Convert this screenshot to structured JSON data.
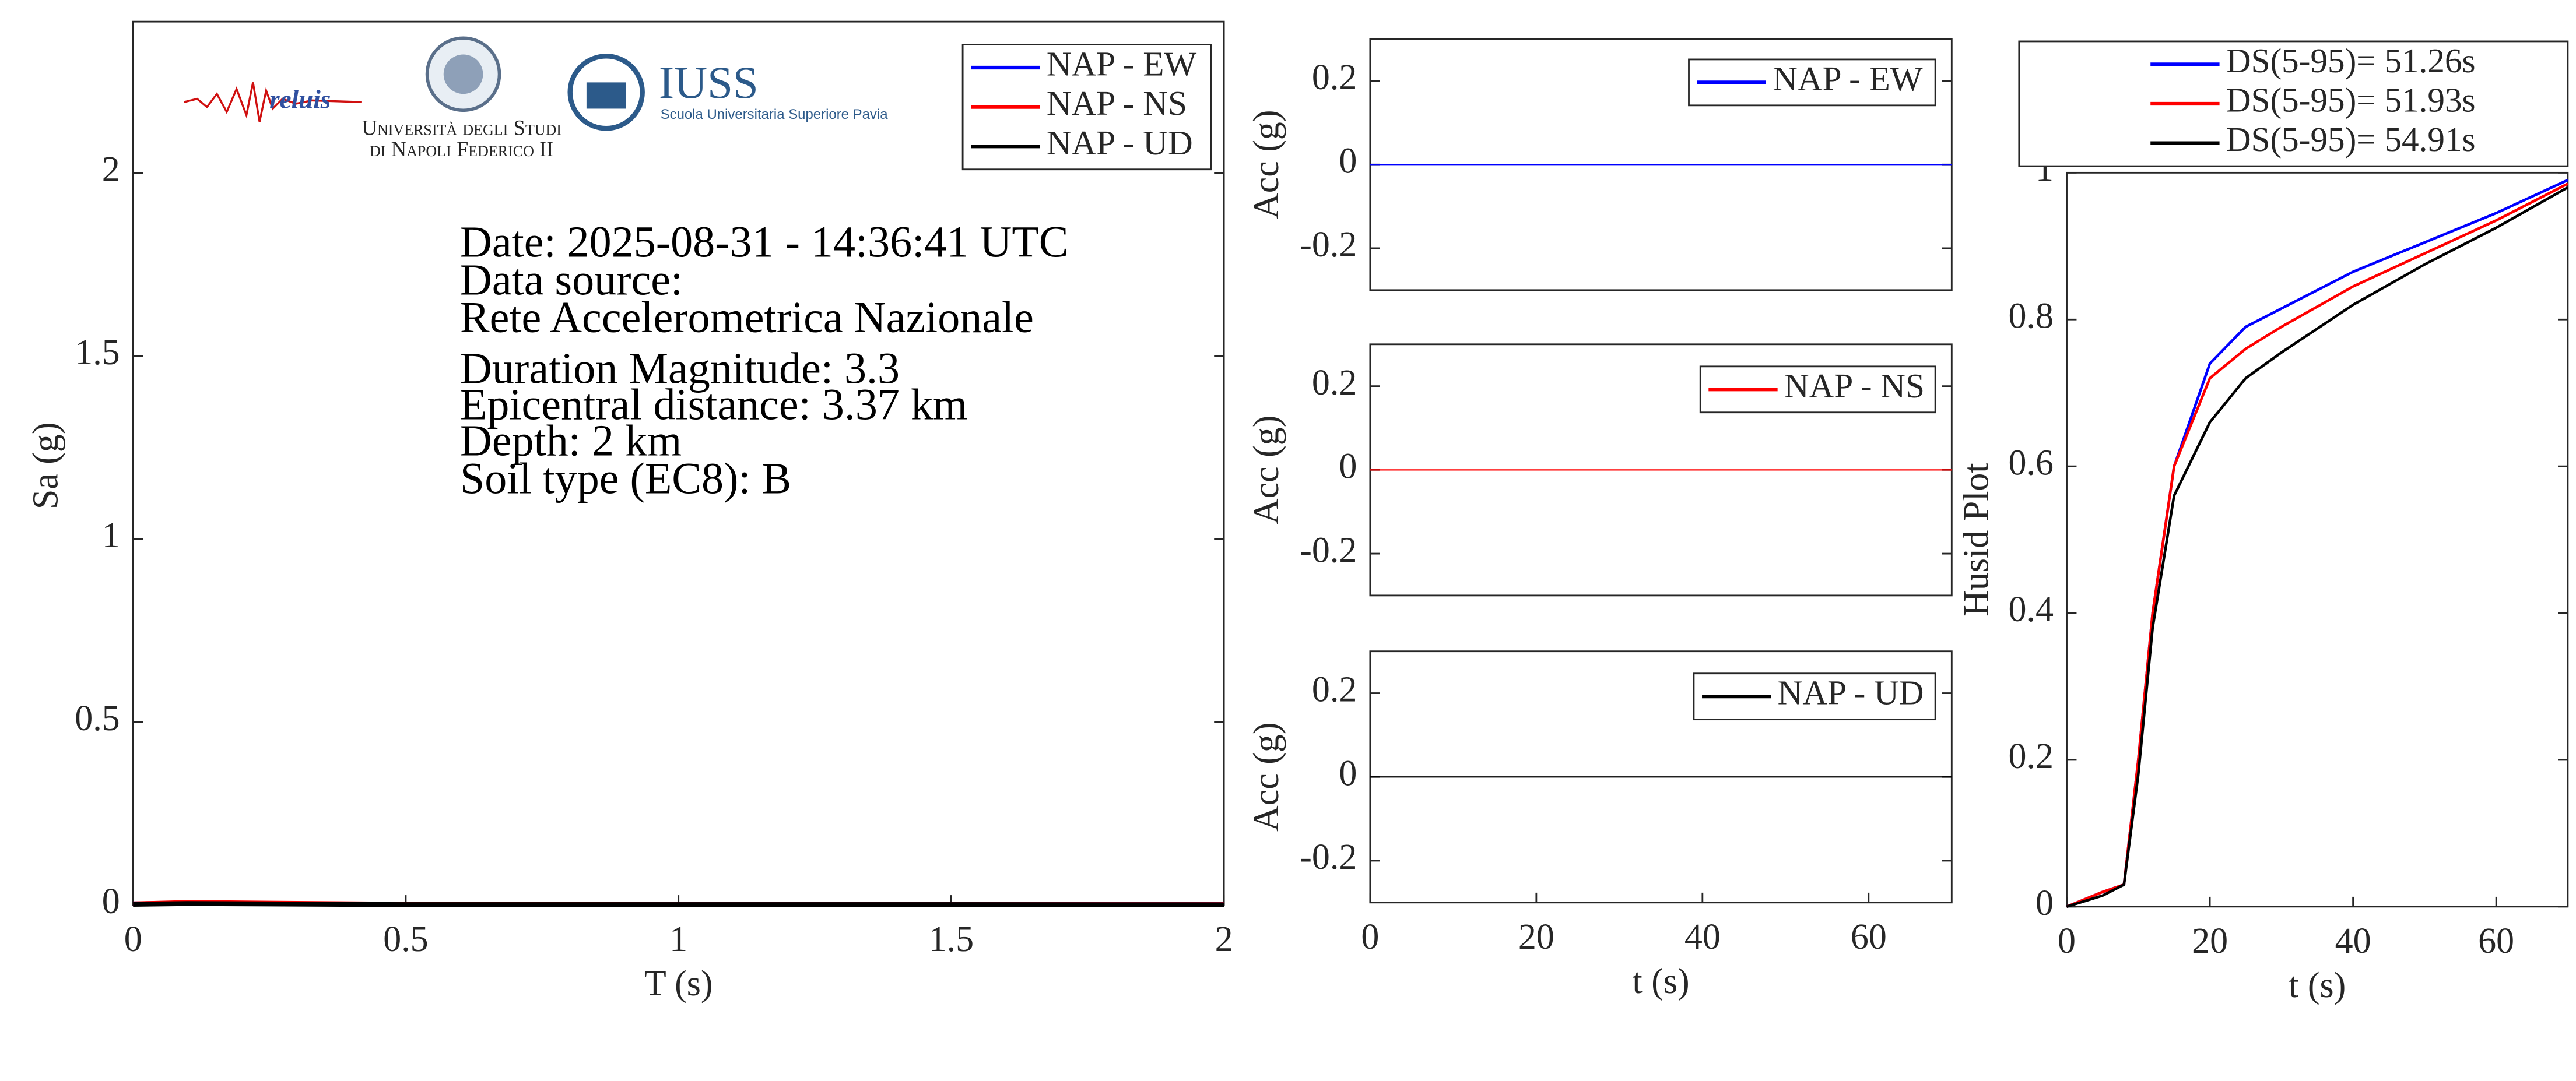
{
  "logos": {
    "reluis": "reluis",
    "unina": [
      "Università degli Studi",
      "di Napoli Federico II"
    ],
    "iuss": "IUSS",
    "iuss_sub": "Scuola Universitaria Superiore Pavia"
  },
  "chart_data": [
    {
      "type": "line",
      "xlabel": "T (s)",
      "ylabel": "Sa (g)",
      "xlim": [
        0,
        2
      ],
      "ylim": [
        0,
        2.4
      ],
      "xticks": [
        0,
        0.5,
        1,
        1.5,
        2
      ],
      "yticks": [
        0,
        0.5,
        1,
        1.5,
        2
      ],
      "x": [
        0,
        0.1,
        0.25,
        0.5,
        1,
        1.5,
        2
      ],
      "series": [
        {
          "name": "NAP - EW",
          "color": "#0000ff",
          "values": [
            0.003,
            0.006,
            0.004,
            0.002,
            0.001,
            0.001,
            0.001
          ]
        },
        {
          "name": "NAP - NS",
          "color": "#ff0000",
          "values": [
            0.003,
            0.007,
            0.005,
            0.002,
            0.001,
            0.001,
            0.001
          ]
        },
        {
          "name": "NAP - UD",
          "color": "#000000",
          "values": [
            0.002,
            0.004,
            0.003,
            0.001,
            0.001,
            0.001,
            0.0005
          ]
        }
      ],
      "legend": "northeast",
      "annotations": [
        "Date: 2025-08-31 - 14:36:41 UTC",
        "Data source:",
        "Rete Accelerometrica Nazionale",
        "Duration Magnitude: 3.3",
        "Epicentral distance: 3.37 km",
        "Depth: 2 km",
        "Soil type (EC8): B"
      ]
    },
    {
      "type": "line",
      "ylabel": "Acc (g)",
      "xlim": [
        0,
        70
      ],
      "ylim": [
        -0.3,
        0.3
      ],
      "yticks": [
        -0.2,
        0,
        0.2
      ],
      "x": [
        0,
        70
      ],
      "series": [
        {
          "name": "NAP - EW",
          "color": "#0000ff",
          "values": [
            0,
            0
          ]
        }
      ],
      "legend": "northeast"
    },
    {
      "type": "line",
      "ylabel": "Acc (g)",
      "xlim": [
        0,
        70
      ],
      "ylim": [
        -0.3,
        0.3
      ],
      "yticks": [
        -0.2,
        0,
        0.2
      ],
      "x": [
        0,
        70
      ],
      "series": [
        {
          "name": "NAP - NS",
          "color": "#ff0000",
          "values": [
            0,
            0
          ]
        }
      ],
      "legend": "northeast"
    },
    {
      "type": "line",
      "ylabel": "Acc (g)",
      "xlabel": "t (s)",
      "xlim": [
        0,
        70
      ],
      "ylim": [
        -0.3,
        0.3
      ],
      "yticks": [
        -0.2,
        0,
        0.2
      ],
      "xticks": [
        0,
        20,
        40,
        60
      ],
      "x": [
        0,
        70
      ],
      "series": [
        {
          "name": "NAP - UD",
          "color": "#000000",
          "values": [
            0,
            0
          ]
        }
      ],
      "legend": "northeast"
    },
    {
      "type": "line",
      "ylabel": "Husid Plot",
      "xlabel": "t (s)",
      "xlim": [
        0,
        70
      ],
      "ylim": [
        0,
        1
      ],
      "yticks": [
        0,
        0.2,
        0.4,
        0.6,
        0.8,
        1
      ],
      "xticks": [
        0,
        20,
        40,
        60
      ],
      "x": [
        0,
        5,
        8,
        10,
        12,
        15,
        20,
        25,
        30,
        40,
        50,
        60,
        70
      ],
      "series": [
        {
          "name": "DS(5-95)= 51.26s",
          "color": "#0000ff",
          "values": [
            0,
            0.02,
            0.03,
            0.2,
            0.4,
            0.6,
            0.74,
            0.79,
            0.815,
            0.865,
            0.905,
            0.945,
            0.99
          ]
        },
        {
          "name": "DS(5-95)= 51.93s",
          "color": "#ff0000",
          "values": [
            0,
            0.02,
            0.03,
            0.2,
            0.4,
            0.6,
            0.72,
            0.76,
            0.79,
            0.845,
            0.89,
            0.935,
            0.985
          ]
        },
        {
          "name": "DS(5-95)= 54.91s",
          "color": "#000000",
          "values": [
            0,
            0.015,
            0.03,
            0.18,
            0.38,
            0.56,
            0.66,
            0.72,
            0.755,
            0.82,
            0.875,
            0.925,
            0.98
          ]
        }
      ],
      "legend": "north-outside"
    }
  ]
}
